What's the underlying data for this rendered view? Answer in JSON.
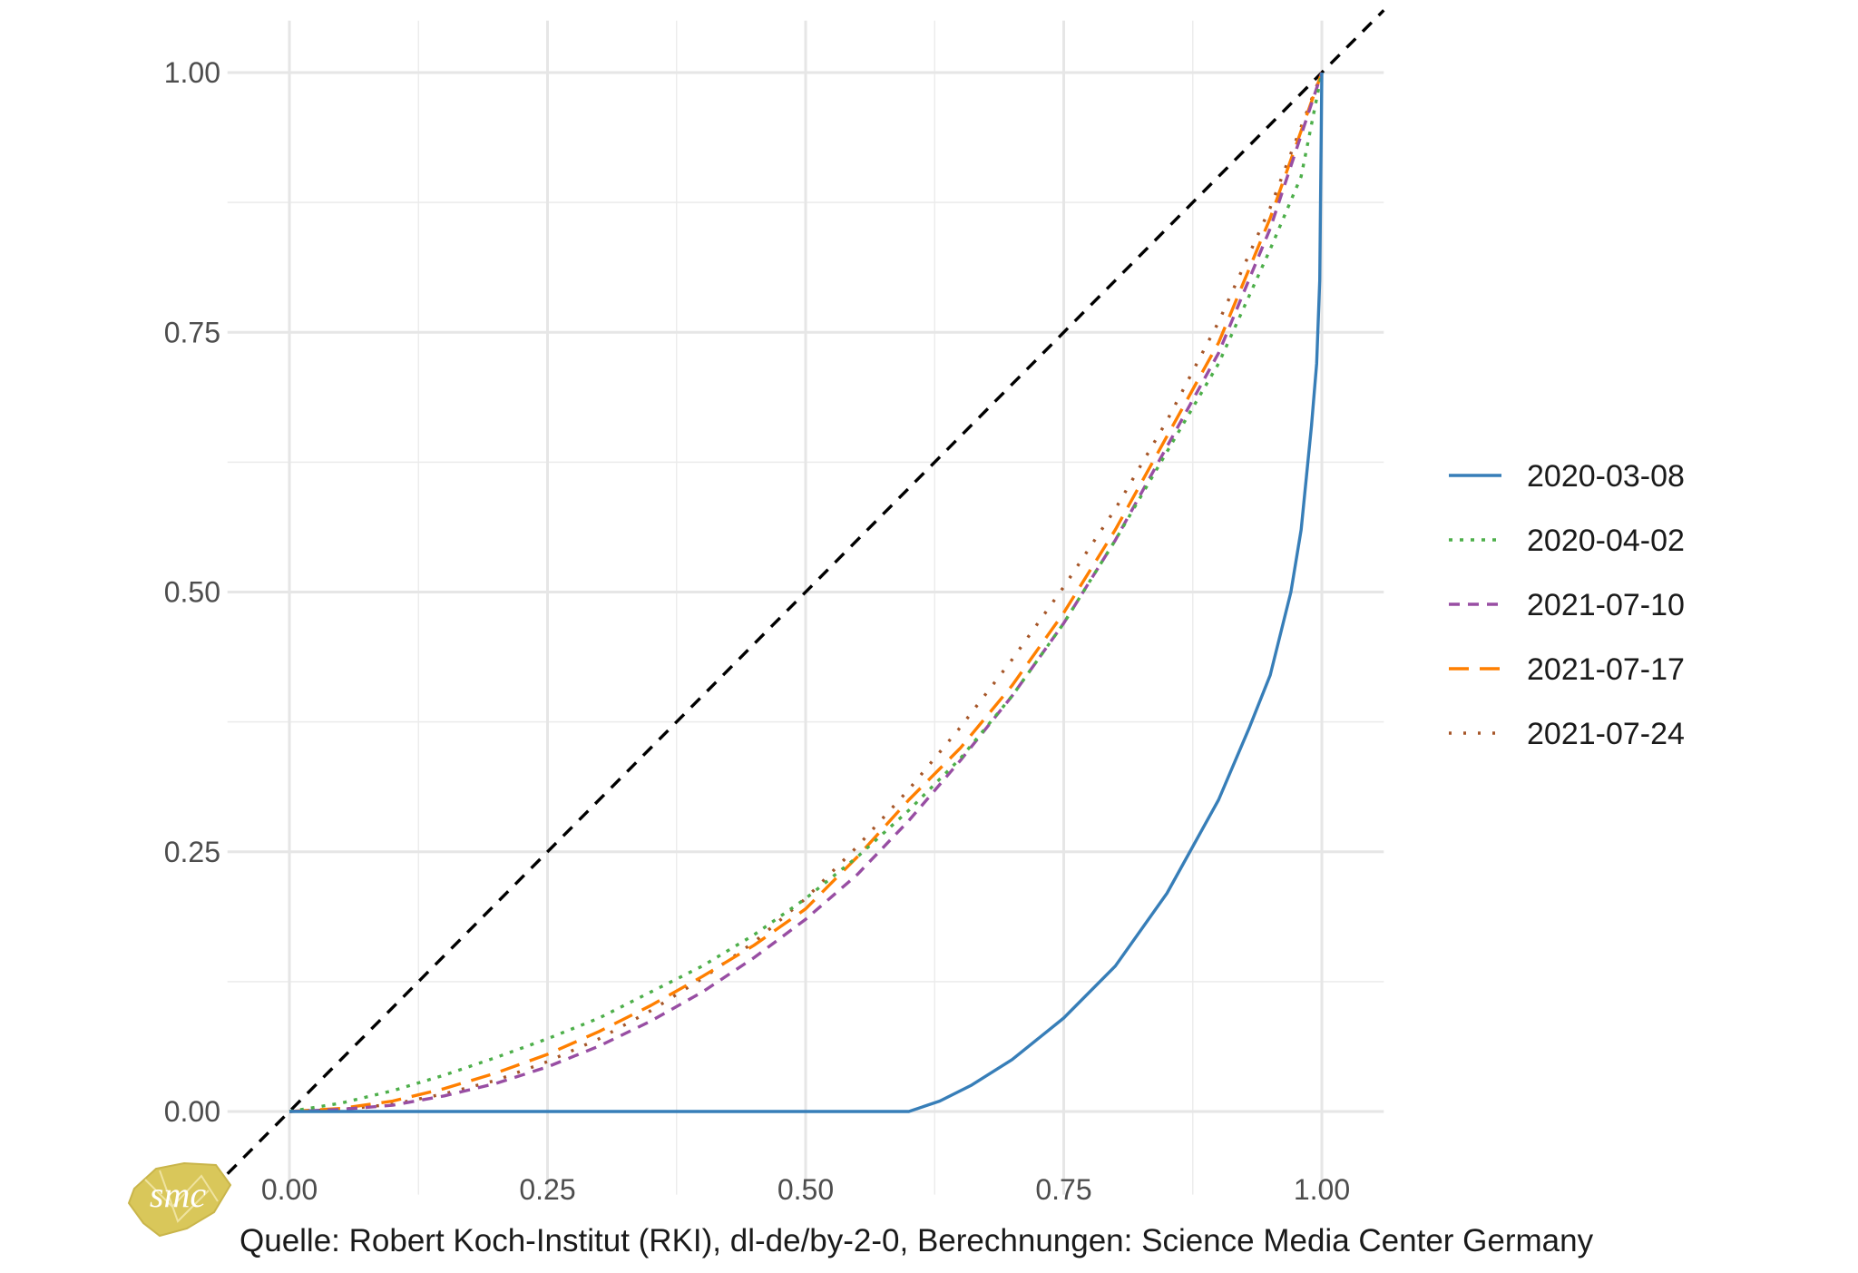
{
  "chart_data": {
    "type": "line",
    "title": "",
    "xlabel": "",
    "ylabel": "",
    "xlim": [
      -0.06,
      1.06
    ],
    "ylim": [
      -0.08,
      1.05
    ],
    "x_ticks": [
      "0.00",
      "0.25",
      "0.50",
      "0.75",
      "1.00"
    ],
    "y_ticks": [
      "0.00",
      "0.25",
      "0.50",
      "0.75",
      "1.00"
    ],
    "grid": true,
    "legend_position": "right",
    "reference_line": {
      "from": [
        -0.06,
        -0.06
      ],
      "to": [
        1.06,
        1.06
      ],
      "style": "dashed",
      "color": "#000000"
    },
    "series": [
      {
        "name": "2020-03-08",
        "color": "#377eb8",
        "dash": "solid",
        "x": [
          0,
          0.2,
          0.4,
          0.6,
          0.63,
          0.66,
          0.7,
          0.75,
          0.8,
          0.85,
          0.9,
          0.93,
          0.95,
          0.97,
          0.98,
          0.99,
          0.995,
          0.998,
          1.0
        ],
        "y": [
          0,
          0,
          0,
          0,
          0.01,
          0.025,
          0.05,
          0.09,
          0.14,
          0.21,
          0.3,
          0.37,
          0.42,
          0.5,
          0.56,
          0.66,
          0.72,
          0.8,
          1.0
        ]
      },
      {
        "name": "2020-04-02",
        "color": "#4daf4a",
        "dash": "dotted",
        "x": [
          0,
          0.05,
          0.1,
          0.15,
          0.2,
          0.25,
          0.3,
          0.35,
          0.4,
          0.45,
          0.5,
          0.55,
          0.6,
          0.65,
          0.7,
          0.75,
          0.8,
          0.85,
          0.9,
          0.95,
          0.98,
          1.0
        ],
        "y": [
          0,
          0.008,
          0.02,
          0.035,
          0.052,
          0.07,
          0.09,
          0.115,
          0.14,
          0.17,
          0.205,
          0.245,
          0.29,
          0.34,
          0.4,
          0.47,
          0.55,
          0.635,
          0.72,
          0.83,
          0.9,
          1.0
        ]
      },
      {
        "name": "2021-07-10",
        "color": "#984ea3",
        "dash": "dashed",
        "x": [
          0,
          0.05,
          0.1,
          0.15,
          0.2,
          0.25,
          0.3,
          0.35,
          0.4,
          0.45,
          0.5,
          0.55,
          0.6,
          0.65,
          0.7,
          0.75,
          0.8,
          0.85,
          0.9,
          0.95,
          1.0
        ],
        "y": [
          0,
          0.002,
          0.006,
          0.015,
          0.027,
          0.043,
          0.063,
          0.087,
          0.115,
          0.148,
          0.185,
          0.228,
          0.28,
          0.338,
          0.4,
          0.47,
          0.55,
          0.64,
          0.73,
          0.85,
          1.0
        ]
      },
      {
        "name": "2021-07-17",
        "color": "#ff7f00",
        "dash": "longdash",
        "x": [
          0,
          0.05,
          0.1,
          0.15,
          0.2,
          0.25,
          0.3,
          0.35,
          0.4,
          0.45,
          0.5,
          0.55,
          0.6,
          0.65,
          0.7,
          0.75,
          0.8,
          0.85,
          0.9,
          0.95,
          1.0
        ],
        "y": [
          0,
          0.003,
          0.01,
          0.022,
          0.037,
          0.055,
          0.077,
          0.102,
          0.13,
          0.16,
          0.195,
          0.245,
          0.3,
          0.35,
          0.41,
          0.48,
          0.56,
          0.65,
          0.74,
          0.86,
          1.0
        ]
      },
      {
        "name": "2021-07-24",
        "color": "#a65628",
        "dash": "dotted-sparse",
        "x": [
          0,
          0.05,
          0.1,
          0.15,
          0.2,
          0.25,
          0.3,
          0.35,
          0.4,
          0.45,
          0.5,
          0.55,
          0.6,
          0.65,
          0.7,
          0.75,
          0.8,
          0.85,
          0.9,
          0.95,
          1.0
        ],
        "y": [
          0,
          0.002,
          0.007,
          0.017,
          0.03,
          0.048,
          0.07,
          0.097,
          0.128,
          0.163,
          0.205,
          0.255,
          0.31,
          0.37,
          0.435,
          0.505,
          0.58,
          0.665,
          0.76,
          0.87,
          1.0
        ]
      }
    ]
  },
  "logo_text": "smc",
  "caption": "Quelle: Robert Koch-Institut (RKI), dl-de/by-2-0, Berechnungen: Science Media Center Germany"
}
